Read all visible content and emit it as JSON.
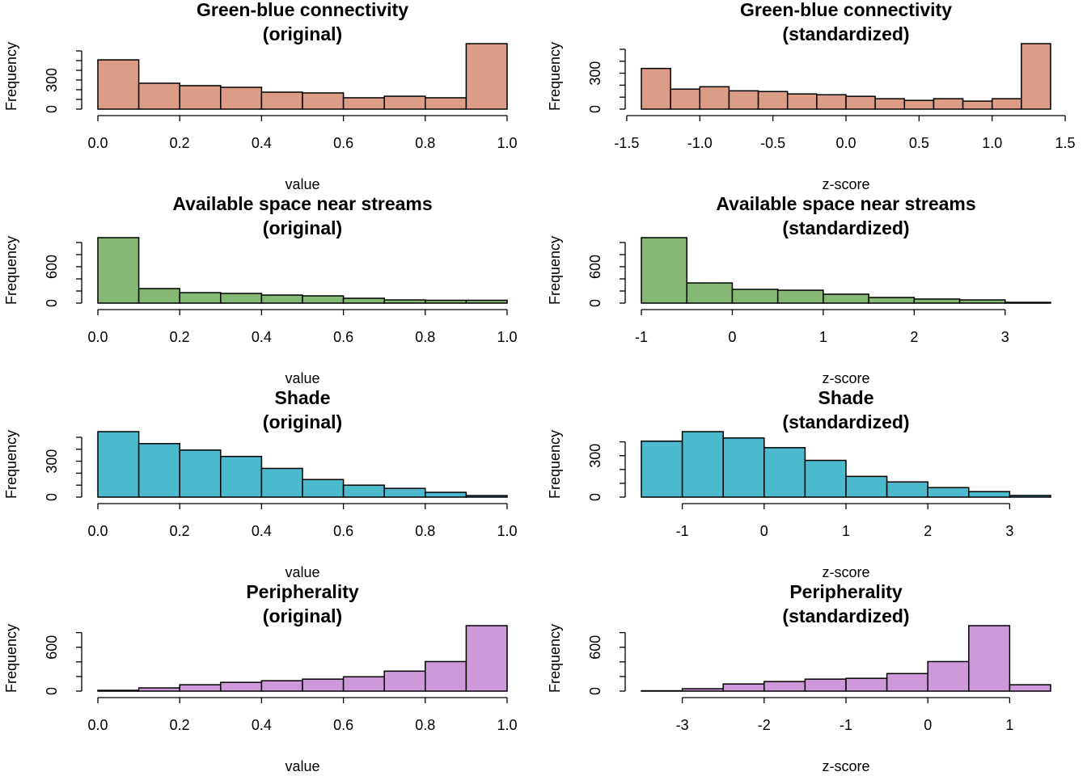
{
  "chart_data": [
    {
      "type": "histogram",
      "title": "Green-blue connectivity",
      "subtitle": "(original)",
      "xlabel": "value",
      "ylabel": "Frequency",
      "color": "#db9d85",
      "bins": [
        0,
        0.1,
        0.2,
        0.3,
        0.4,
        0.5,
        0.6,
        0.7,
        0.8,
        0.9,
        1
      ],
      "values": [
        508,
        267,
        242,
        225,
        175,
        167,
        117,
        133,
        117,
        675
      ],
      "xlim": [
        0,
        1
      ],
      "ylim": [
        0,
        675
      ],
      "xticks": [
        {
          "value": 0,
          "label": "0.0"
        },
        0.2,
        0.4,
        0.6,
        0.8,
        {
          "value": 1,
          "label": "1.0"
        }
      ],
      "yticks": [
        0,
        300
      ],
      "yminorticks": [
        100,
        200,
        400,
        500,
        600
      ]
    },
    {
      "type": "histogram",
      "title": "Green-blue connectivity",
      "subtitle": "(standardized)",
      "xlabel": "z-score",
      "ylabel": "Frequency",
      "color": "#db9d85",
      "bins": [
        -1.4,
        -1.2,
        -1,
        -0.8,
        -0.6,
        -0.4,
        -0.2,
        0,
        0.2,
        0.4,
        0.6,
        0.8,
        1,
        1.2,
        1.4
      ],
      "values": [
        340,
        167,
        187,
        153,
        147,
        127,
        120,
        107,
        87,
        73,
        87,
        67,
        87,
        547
      ],
      "xlim": [
        -1.4,
        1.4
      ],
      "ylim": [
        0,
        547
      ],
      "xticks": [
        -1.5,
        {
          "value": -1,
          "label": "-1.0"
        },
        -0.5,
        {
          "value": 0,
          "label": "0.0"
        },
        0.5,
        {
          "value": 1,
          "label": "1.0"
        },
        1.5
      ],
      "yticks": [
        0,
        300
      ],
      "yminorticks": [
        100,
        200,
        400,
        500
      ]
    },
    {
      "type": "histogram",
      "title": "Available space near streams",
      "subtitle": "(original)",
      "xlabel": "value",
      "ylabel": "Frequency",
      "color": "#86b875",
      "bins": [
        0,
        0.1,
        0.2,
        0.3,
        0.4,
        0.5,
        0.6,
        0.7,
        0.8,
        0.9,
        1
      ],
      "values": [
        1080,
        240,
        173,
        160,
        133,
        120,
        80,
        53,
        47,
        47
      ],
      "xlim": [
        0,
        1
      ],
      "ylim": [
        0,
        1080
      ],
      "xticks": [
        {
          "value": 0,
          "label": "0.0"
        },
        0.2,
        0.4,
        0.6,
        0.8,
        {
          "value": 1,
          "label": "1.0"
        }
      ],
      "yticks": [
        0,
        600
      ],
      "yminorticks": [
        200,
        400,
        800,
        1000
      ]
    },
    {
      "type": "histogram",
      "title": "Available space near streams",
      "subtitle": "(standardized)",
      "xlabel": "z-score",
      "ylabel": "Frequency",
      "color": "#86b875",
      "bins": [
        -1,
        -0.5,
        0,
        0.5,
        1,
        1.5,
        2,
        2.5,
        3,
        3.5
      ],
      "values": [
        1080,
        333,
        227,
        213,
        147,
        93,
        67,
        53,
        13
      ],
      "xlim": [
        -1,
        3.5
      ],
      "ylim": [
        0,
        1080
      ],
      "xticks": [
        -1,
        0,
        1,
        2,
        3
      ],
      "yticks": [
        0,
        600
      ],
      "yminorticks": [
        200,
        400,
        800,
        1000
      ]
    },
    {
      "type": "histogram",
      "title": "Shade",
      "subtitle": "(original)",
      "xlabel": "value",
      "ylabel": "Frequency",
      "color": "#4cb9cc",
      "bins": [
        0,
        0.1,
        0.2,
        0.3,
        0.4,
        0.5,
        0.6,
        0.7,
        0.8,
        0.9,
        1
      ],
      "values": [
        547,
        447,
        393,
        340,
        240,
        147,
        100,
        73,
        40,
        13
      ],
      "xlim": [
        0,
        1
      ],
      "ylim": [
        0,
        547
      ],
      "xticks": [
        {
          "value": 0,
          "label": "0.0"
        },
        0.2,
        0.4,
        0.6,
        0.8,
        {
          "value": 1,
          "label": "1.0"
        }
      ],
      "yticks": [
        0,
        300
      ],
      "yminorticks": [
        100,
        200,
        400,
        500
      ]
    },
    {
      "type": "histogram",
      "title": "Shade",
      "subtitle": "(standardized)",
      "xlabel": "z-score",
      "ylabel": "Frequency",
      "color": "#4cb9cc",
      "bins": [
        -1.5,
        -1,
        -0.5,
        0,
        0.5,
        1,
        1.5,
        2,
        2.5,
        3,
        3.5
      ],
      "values": [
        405,
        474,
        428,
        358,
        266,
        150,
        110,
        69,
        40,
        12
      ],
      "xlim": [
        -1.5,
        3.5
      ],
      "ylim": [
        0,
        474
      ],
      "xticks": [
        -1,
        0,
        1,
        2,
        3
      ],
      "yticks": [
        0,
        300
      ],
      "yminorticks": [
        100,
        200,
        400
      ]
    },
    {
      "type": "histogram",
      "title": "Peripherality",
      "subtitle": "(original)",
      "xlabel": "value",
      "ylabel": "Frequency",
      "color": "#cd99d8",
      "bins": [
        0,
        0.1,
        0.2,
        0.3,
        0.4,
        0.5,
        0.6,
        0.7,
        0.8,
        0.9,
        1
      ],
      "values": [
        11,
        44,
        87,
        120,
        142,
        164,
        196,
        273,
        404,
        895
      ],
      "xlim": [
        0,
        1
      ],
      "ylim": [
        0,
        895
      ],
      "xticks": [
        {
          "value": 0,
          "label": "0.0"
        },
        0.2,
        0.4,
        0.6,
        0.8,
        {
          "value": 1,
          "label": "1.0"
        }
      ],
      "yticks": [
        0,
        600
      ],
      "yminorticks": [
        200,
        400,
        800
      ]
    },
    {
      "type": "histogram",
      "title": "Peripherality",
      "subtitle": "(standardized)",
      "xlabel": "z-score",
      "ylabel": "Frequency",
      "color": "#cd99d8",
      "bins": [
        -3.5,
        -3,
        -2.5,
        -2,
        -1.5,
        -1,
        -0.5,
        0,
        0.5,
        1,
        1.5
      ],
      "values": [
        5,
        33,
        98,
        131,
        164,
        175,
        240,
        404,
        895,
        87
      ],
      "xlim": [
        -3.5,
        1.5
      ],
      "ylim": [
        0,
        895
      ],
      "xticks": [
        -3,
        -2,
        -1,
        0,
        1
      ],
      "yticks": [
        0,
        600
      ],
      "yminorticks": [
        200,
        400,
        800
      ]
    }
  ]
}
